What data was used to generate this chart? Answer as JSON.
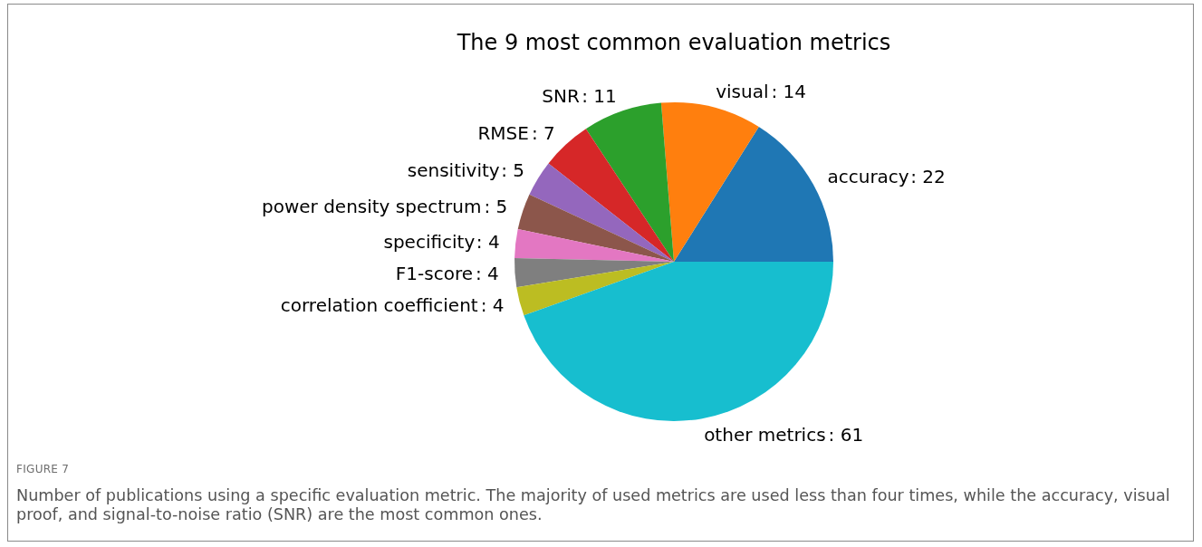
{
  "chart_data": {
    "type": "pie",
    "title": "The 9 most common evaluation metrics",
    "categories": [
      "accuracy",
      "visual",
      "SNR",
      "RMSE",
      "sensitivity",
      "power density spectrum",
      "specificity",
      "F1-score",
      "correlation coefficient",
      "other metrics"
    ],
    "values": [
      22,
      14,
      11,
      7,
      5,
      5,
      4,
      4,
      4,
      61
    ],
    "value_labels": [
      ": 22",
      ": 14",
      ": 11",
      ": 7",
      ": 5",
      ": 5",
      ": 4",
      ": 4",
      ": 4",
      ": 61"
    ],
    "colors": [
      "#1f77b4",
      "#ff7f0e",
      "#2ca02c",
      "#d62728",
      "#9467bd",
      "#8c564b",
      "#e377c2",
      "#7f7f7f",
      "#bcbd22",
      "#17becf"
    ],
    "annotations": [
      "FIGURE 7",
      "Number of publications using a specific evaluation metric. The majority of used metrics are used less than four times, while the accuracy, visual proof, and signal-to-noise ratio (SNR) are the most common ones."
    ]
  }
}
